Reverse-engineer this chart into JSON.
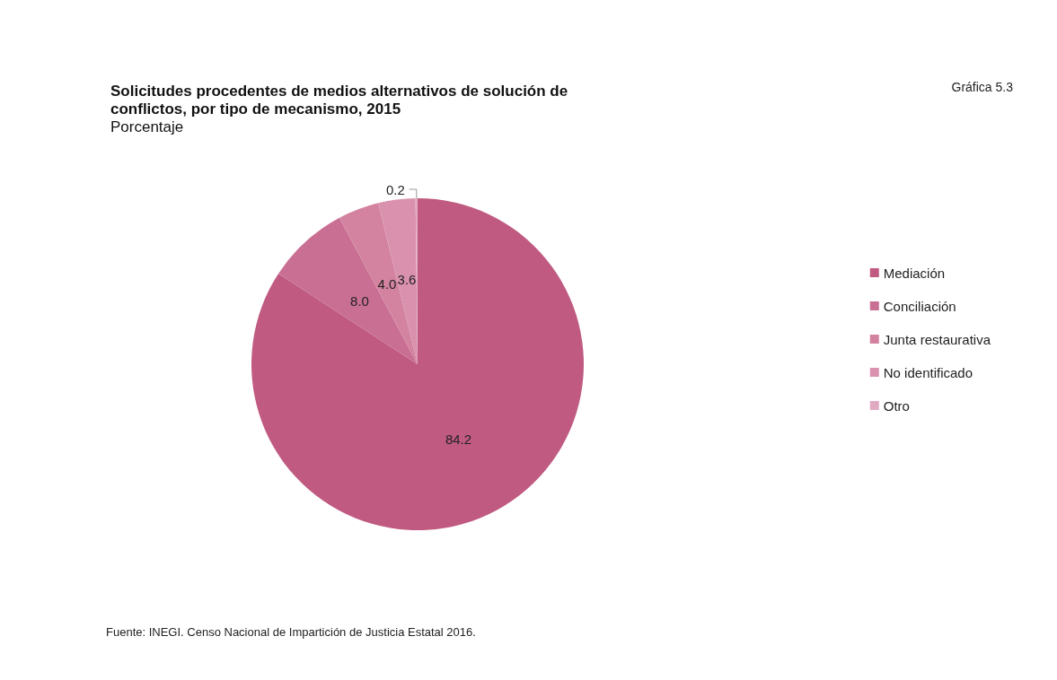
{
  "chart_data": {
    "type": "pie",
    "title": "Solicitudes procedentes de medios alternativos de solución de conflictos, por tipo de mecanismo, 2015",
    "subtitle": "Porcentaje",
    "categories": [
      "Mediación",
      "Conciliación",
      "Junta restaurativa",
      "No identificado",
      "Otro"
    ],
    "values": [
      84.2,
      8.0,
      4.0,
      3.6,
      0.2
    ],
    "colors": [
      "#c05a80",
      "#c96f93",
      "#d3839f",
      "#d991ad",
      "#e2aac2"
    ],
    "value_labels": [
      "84.2",
      "8.0",
      "4.0",
      "3.6",
      "0.2"
    ],
    "legend": "right",
    "annotations": [
      "Gráfica 5.3",
      "Fuente: INEGI. Censo Nacional de Impartición de Justicia Estatal 2016."
    ]
  }
}
